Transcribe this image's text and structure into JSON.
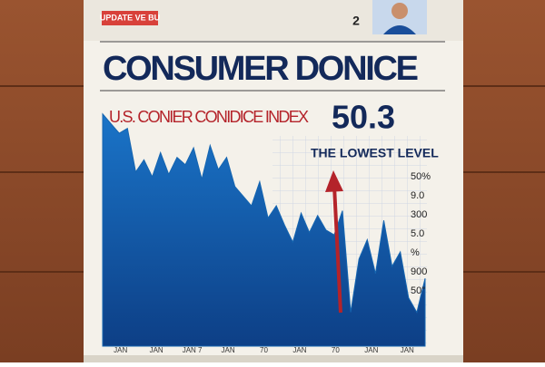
{
  "header": {
    "badge": "UPDATE VE BU",
    "badge_number": "2"
  },
  "headline": "CONSUMER DONICE",
  "subheadline": "U.S. CONIER CONIDICE INDEX",
  "big_number": "50.3",
  "chart_data": {
    "type": "area",
    "annotation": "THE LOWEST LEVEL",
    "values": [
      96,
      92,
      88,
      90,
      72,
      77,
      70,
      80,
      71,
      78,
      75,
      82,
      69,
      83,
      73,
      78,
      66,
      62,
      58,
      68,
      53,
      58,
      50,
      43,
      55,
      47,
      54,
      48,
      46,
      56,
      14,
      36,
      44,
      30,
      52,
      33,
      39,
      20,
      14,
      28
    ],
    "color": "#1565b0",
    "ylim": [
      0,
      100
    ],
    "side_labels": [
      "50%",
      "9.0",
      "300",
      "5.0",
      "%",
      "900",
      "50\""
    ],
    "x_labels": [
      "JAN",
      "JAN",
      "JAN 7",
      "JAN",
      "70",
      "JAN",
      "70",
      "JAN",
      "JAN"
    ]
  }
}
